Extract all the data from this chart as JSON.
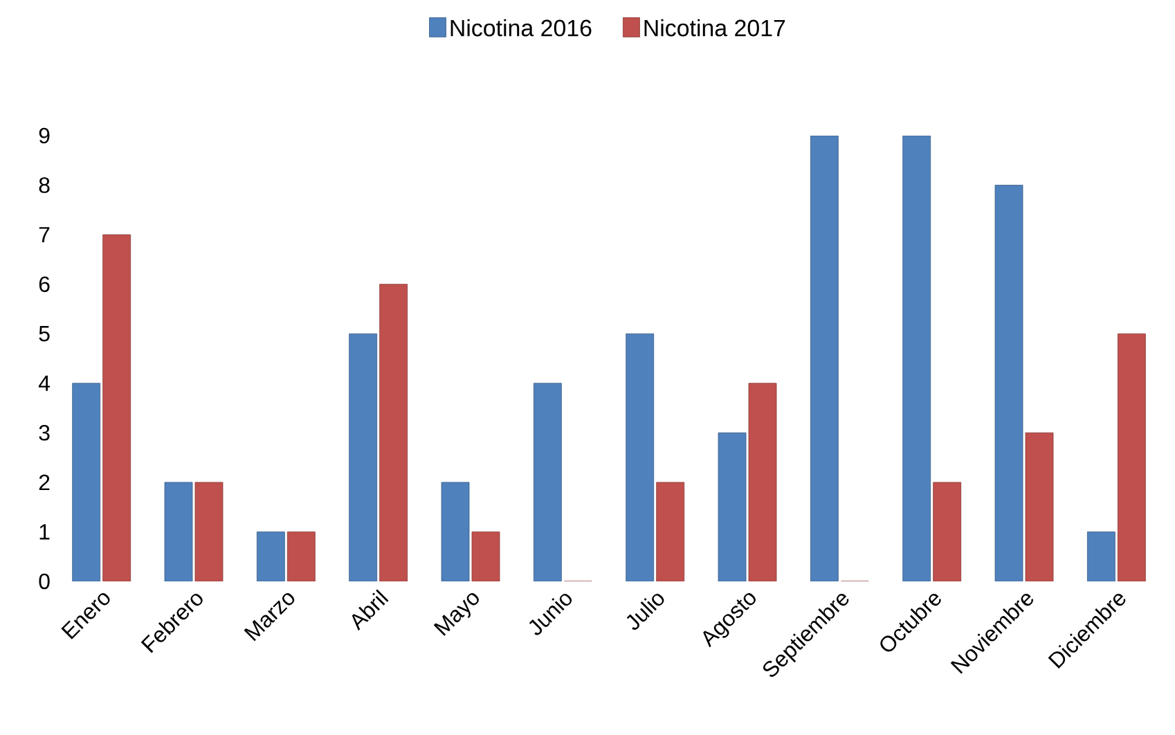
{
  "chart_data": {
    "type": "bar",
    "categories": [
      "Enero",
      "Febrero",
      "Marzo",
      "Abril",
      "Mayo",
      "Junio",
      "Julio",
      "Agosto",
      "Septiembre",
      "Octubre",
      "Noviembre",
      "Diciembre"
    ],
    "series": [
      {
        "name": "Nicotina 2016",
        "color": "#4f81bd",
        "values": [
          4,
          2,
          1,
          5,
          2,
          4,
          5,
          3,
          9,
          9,
          8,
          1
        ]
      },
      {
        "name": "Nicotina 2017",
        "color": "#c0504d",
        "values": [
          7,
          2,
          1,
          6,
          1,
          0,
          2,
          4,
          0,
          2,
          3,
          5
        ]
      }
    ],
    "ylim": [
      0,
      9
    ],
    "yticks": [
      0,
      1,
      2,
      3,
      4,
      5,
      6,
      7,
      8,
      9
    ],
    "legend": "top"
  }
}
